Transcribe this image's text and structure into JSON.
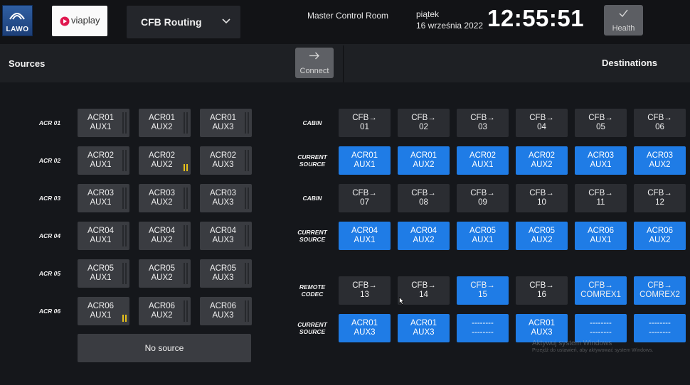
{
  "header": {
    "brand": "LAWO",
    "partner": "viaplay",
    "routing_select": "CFB Routing",
    "room": "Master Control Room",
    "day": "piątek",
    "date": "16 września 2022",
    "time": "12:55:51",
    "health_label": "Health"
  },
  "sections": {
    "sources": "Sources",
    "destinations": "Destinations",
    "connect_label": "Connect"
  },
  "sources": {
    "rows": [
      {
        "label": "ACR 01",
        "tiles": [
          {
            "l1": "ACR01",
            "l2": "AUX1",
            "lit": false
          },
          {
            "l1": "ACR01",
            "l2": "AUX2",
            "lit": false
          },
          {
            "l1": "ACR01",
            "l2": "AUX3",
            "lit": false
          }
        ]
      },
      {
        "label": "ACR 02",
        "tiles": [
          {
            "l1": "ACR02",
            "l2": "AUX1",
            "lit": false
          },
          {
            "l1": "ACR02",
            "l2": "AUX2",
            "lit": true
          },
          {
            "l1": "ACR02",
            "l2": "AUX3",
            "lit": false
          }
        ]
      },
      {
        "label": "ACR 03",
        "tiles": [
          {
            "l1": "ACR03",
            "l2": "AUX1",
            "lit": false
          },
          {
            "l1": "ACR03",
            "l2": "AUX2",
            "lit": false
          },
          {
            "l1": "ACR03",
            "l2": "AUX3",
            "lit": false
          }
        ]
      },
      {
        "label": "ACR 04",
        "tiles": [
          {
            "l1": "ACR04",
            "l2": "AUX1",
            "lit": false
          },
          {
            "l1": "ACR04",
            "l2": "AUX2",
            "lit": false
          },
          {
            "l1": "ACR04",
            "l2": "AUX3",
            "lit": false
          }
        ]
      },
      {
        "label": "ACR 05",
        "tiles": [
          {
            "l1": "ACR05",
            "l2": "AUX1",
            "lit": false
          },
          {
            "l1": "ACR05",
            "l2": "AUX2",
            "lit": false
          },
          {
            "l1": "ACR05",
            "l2": "AUX3",
            "lit": false
          }
        ]
      },
      {
        "label": "ACR 06",
        "tiles": [
          {
            "l1": "ACR06",
            "l2": "AUX1",
            "lit": true
          },
          {
            "l1": "ACR06",
            "l2": "AUX2",
            "lit": false
          },
          {
            "l1": "ACR06",
            "l2": "AUX3",
            "lit": false
          }
        ]
      }
    ],
    "no_source": "No source"
  },
  "destinations": {
    "groups": [
      {
        "dest_label": [
          "CABIN"
        ],
        "src_label": [
          "CURRENT",
          "SOURCE"
        ],
        "dests": [
          {
            "l1": "CFB→",
            "l2": "01",
            "active": false
          },
          {
            "l1": "CFB→",
            "l2": "02",
            "active": false
          },
          {
            "l1": "CFB→",
            "l2": "03",
            "active": false
          },
          {
            "l1": "CFB→",
            "l2": "04",
            "active": false
          },
          {
            "l1": "CFB→",
            "l2": "05",
            "active": false
          },
          {
            "l1": "CFB→",
            "l2": "06",
            "active": false
          }
        ],
        "current": [
          {
            "l1": "ACR01",
            "l2": "AUX1"
          },
          {
            "l1": "ACR01",
            "l2": "AUX2"
          },
          {
            "l1": "ACR02",
            "l2": "AUX1"
          },
          {
            "l1": "ACR02",
            "l2": "AUX2"
          },
          {
            "l1": "ACR03",
            "l2": "AUX1"
          },
          {
            "l1": "ACR03",
            "l2": "AUX2"
          }
        ]
      },
      {
        "dest_label": [
          "CABIN"
        ],
        "src_label": [
          "CURRENT",
          "SOURCE"
        ],
        "dests": [
          {
            "l1": "CFB→",
            "l2": "07",
            "active": false
          },
          {
            "l1": "CFB→",
            "l2": "08",
            "active": false
          },
          {
            "l1": "CFB→",
            "l2": "09",
            "active": false
          },
          {
            "l1": "CFB→",
            "l2": "10",
            "active": false
          },
          {
            "l1": "CFB→",
            "l2": "11",
            "active": false
          },
          {
            "l1": "CFB→",
            "l2": "12",
            "active": false
          }
        ],
        "current": [
          {
            "l1": "ACR04",
            "l2": "AUX1"
          },
          {
            "l1": "ACR04",
            "l2": "AUX2"
          },
          {
            "l1": "ACR05",
            "l2": "AUX1"
          },
          {
            "l1": "ACR05",
            "l2": "AUX2"
          },
          {
            "l1": "ACR06",
            "l2": "AUX1"
          },
          {
            "l1": "ACR06",
            "l2": "AUX2"
          }
        ]
      },
      {
        "dest_label": [
          "REMOTE",
          "CODEC"
        ],
        "src_label": [
          "CURRENT",
          "SOURCE"
        ],
        "dests": [
          {
            "l1": "CFB→",
            "l2": "13",
            "active": false
          },
          {
            "l1": "CFB→",
            "l2": "14",
            "active": false
          },
          {
            "l1": "CFB→",
            "l2": "15",
            "active": true
          },
          {
            "l1": "CFB→",
            "l2": "16",
            "active": false
          },
          {
            "l1": "CFB→",
            "l2": "COMREX1",
            "active": true
          },
          {
            "l1": "CFB→",
            "l2": "COMREX2",
            "active": true
          }
        ],
        "current": [
          {
            "l1": "ACR01",
            "l2": "AUX3"
          },
          {
            "l1": "ACR01",
            "l2": "AUX3"
          },
          {
            "l1": "--------",
            "l2": "--------"
          },
          {
            "l1": "ACR01",
            "l2": "AUX3"
          },
          {
            "l1": "--------",
            "l2": "--------"
          },
          {
            "l1": "--------",
            "l2": "--------"
          }
        ]
      }
    ]
  },
  "watermark": {
    "line1": "Aktywuj system Windows",
    "line2": "Przejdź do ustawień, aby aktywować system Windows."
  },
  "colors": {
    "accent_blue": "#1f7ce6",
    "background": "#15171b",
    "source_tile": "#3a3c41",
    "dest_tile": "#2b2d32",
    "meter_yellow": "#e8c21a"
  },
  "icons": {
    "dropdown": "chevron-down-icon",
    "health": "check-icon",
    "connect": "arrow-right-icon"
  }
}
